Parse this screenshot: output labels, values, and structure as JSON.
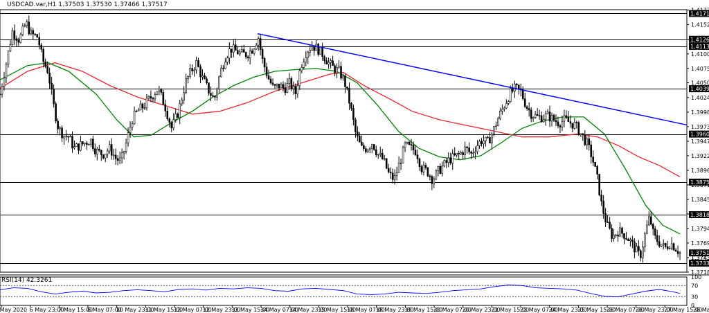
{
  "chart_data": {
    "type": "candlestick",
    "title": "USDCAD.var,H1  1.37503 1.37530 1.37466 1.37517",
    "symbol": "USDCAD.var,H1",
    "ohlc": {
      "open": 1.37503,
      "high": 1.3753,
      "low": 1.37466,
      "close": 1.37517
    },
    "ylim": [
      1.3718,
      1.4178
    ],
    "y_ticks": [
      "1.41775",
      "1.41520",
      "1.41261",
      "1.41005",
      "1.40750",
      "1.40500",
      "1.40240",
      "1.39985",
      "1.39730",
      "1.39475",
      "1.39220",
      "1.38965",
      "1.38710",
      "1.38455",
      "1.38200",
      "1.37945",
      "1.37690",
      "1.37435",
      "1.37180"
    ],
    "x_tick_labels": [
      "5 May 2020",
      "6 May 23:00",
      "7 May 15:00",
      "8 May 07:00",
      "10 May 23:00",
      "11 May 15:00",
      "12 May 07:00",
      "12 May 23:00",
      "13 May 15:00",
      "14 May 07:00",
      "14 May 23:00",
      "15 May 15:00",
      "18 May 07:00",
      "18 May 23:00",
      "19 May 15:00",
      "20 May 07:00",
      "20 May 23:00",
      "21 May 15:00",
      "22 May 07:00",
      "24 May 23:00",
      "25 May 15:00",
      "26 May 07:00",
      "26 May 23:00",
      "27 May 15:00",
      "28 May 07:00"
    ],
    "horizontal_levels": [
      "1.41714",
      "1.41261",
      "1.41138",
      "1.40395",
      "1.39600",
      "1.38758",
      "1.38188",
      "1.37338"
    ],
    "current_price_tag": "1.37517",
    "extra_price_tag": "1.37435",
    "trendline": {
      "x": [
        0.375,
        1.0
      ],
      "y": [
        1.4136,
        1.3976
      ],
      "color": "#0000ff"
    },
    "close_path": [
      [
        0.0,
        1.403
      ],
      [
        0.01,
        1.409
      ],
      [
        0.018,
        1.414
      ],
      [
        0.028,
        1.4125
      ],
      [
        0.038,
        1.4155
      ],
      [
        0.045,
        1.4135
      ],
      [
        0.055,
        1.413
      ],
      [
        0.062,
        1.409
      ],
      [
        0.07,
        1.407
      ],
      [
        0.078,
        1.401
      ],
      [
        0.085,
        1.397
      ],
      [
        0.093,
        1.3958
      ],
      [
        0.1,
        1.3955
      ],
      [
        0.108,
        1.3935
      ],
      [
        0.116,
        1.394
      ],
      [
        0.124,
        1.3945
      ],
      [
        0.132,
        1.395
      ],
      [
        0.14,
        1.393
      ],
      [
        0.15,
        1.3925
      ],
      [
        0.16,
        1.3935
      ],
      [
        0.168,
        1.3918
      ],
      [
        0.176,
        1.3912
      ],
      [
        0.184,
        1.3945
      ],
      [
        0.192,
        1.3985
      ],
      [
        0.2,
        1.4
      ],
      [
        0.21,
        1.401
      ],
      [
        0.22,
        1.4025
      ],
      [
        0.23,
        1.404
      ],
      [
        0.24,
        1.401
      ],
      [
        0.25,
        1.397
      ],
      [
        0.26,
        1.4
      ],
      [
        0.27,
        1.405
      ],
      [
        0.278,
        1.407
      ],
      [
        0.286,
        1.4085
      ],
      [
        0.294,
        1.406
      ],
      [
        0.302,
        1.404
      ],
      [
        0.312,
        1.402
      ],
      [
        0.32,
        1.4065
      ],
      [
        0.328,
        1.4095
      ],
      [
        0.336,
        1.411
      ],
      [
        0.344,
        1.4105
      ],
      [
        0.352,
        1.41
      ],
      [
        0.36,
        1.41
      ],
      [
        0.368,
        1.411
      ],
      [
        0.376,
        1.413
      ],
      [
        0.382,
        1.409
      ],
      [
        0.39,
        1.406
      ],
      [
        0.398,
        1.404
      ],
      [
        0.406,
        1.4045
      ],
      [
        0.414,
        1.404
      ],
      [
        0.422,
        1.405
      ],
      [
        0.43,
        1.403
      ],
      [
        0.438,
        1.408
      ],
      [
        0.446,
        1.4105
      ],
      [
        0.454,
        1.4115
      ],
      [
        0.462,
        1.411
      ],
      [
        0.47,
        1.41
      ],
      [
        0.478,
        1.4085
      ],
      [
        0.486,
        1.4075
      ],
      [
        0.494,
        1.407
      ],
      [
        0.502,
        1.405
      ],
      [
        0.51,
        1.401
      ],
      [
        0.518,
        1.396
      ],
      [
        0.526,
        1.3935
      ],
      [
        0.534,
        1.3935
      ],
      [
        0.542,
        1.3945
      ],
      [
        0.55,
        1.3925
      ],
      [
        0.558,
        1.3915
      ],
      [
        0.566,
        1.389
      ],
      [
        0.574,
        1.388
      ],
      [
        0.582,
        1.391
      ],
      [
        0.59,
        1.394
      ],
      [
        0.598,
        1.3935
      ],
      [
        0.606,
        1.393
      ],
      [
        0.614,
        1.39
      ],
      [
        0.622,
        1.3895
      ],
      [
        0.63,
        1.388
      ],
      [
        0.638,
        1.3895
      ],
      [
        0.646,
        1.3905
      ],
      [
        0.654,
        1.3915
      ],
      [
        0.662,
        1.392
      ],
      [
        0.67,
        1.3925
      ],
      [
        0.678,
        1.3935
      ],
      [
        0.686,
        1.3925
      ],
      [
        0.694,
        1.394
      ],
      [
        0.702,
        1.395
      ],
      [
        0.71,
        1.3945
      ],
      [
        0.718,
        1.3965
      ],
      [
        0.726,
        1.399
      ],
      [
        0.734,
        1.401
      ],
      [
        0.742,
        1.403
      ],
      [
        0.75,
        1.404
      ],
      [
        0.758,
        1.4035
      ],
      [
        0.766,
        1.401
      ],
      [
        0.774,
        1.3995
      ],
      [
        0.782,
        1.399
      ],
      [
        0.79,
        1.399
      ],
      [
        0.798,
        1.3992
      ],
      [
        0.806,
        1.3985
      ],
      [
        0.814,
        1.398
      ],
      [
        0.822,
        1.3985
      ],
      [
        0.83,
        1.398
      ],
      [
        0.838,
        1.3975
      ],
      [
        0.846,
        1.396
      ],
      [
        0.854,
        1.3945
      ],
      [
        0.862,
        1.392
      ],
      [
        0.87,
        1.388
      ],
      [
        0.876,
        1.3835
      ],
      [
        0.884,
        1.38
      ],
      [
        0.892,
        1.378
      ],
      [
        0.9,
        1.379
      ],
      [
        0.908,
        1.3785
      ],
      [
        0.916,
        1.3775
      ],
      [
        0.924,
        1.376
      ],
      [
        0.932,
        1.3745
      ],
      [
        0.94,
        1.379
      ],
      [
        0.946,
        1.3815
      ],
      [
        0.952,
        1.378
      ],
      [
        0.96,
        1.377
      ],
      [
        0.968,
        1.376
      ],
      [
        0.976,
        1.377
      ],
      [
        0.984,
        1.376
      ],
      [
        0.99,
        1.3752
      ]
    ],
    "ma_fast": {
      "color": "#008000",
      "points": [
        [
          0.0,
          1.4055
        ],
        [
          0.04,
          1.408
        ],
        [
          0.07,
          1.4085
        ],
        [
          0.1,
          1.407
        ],
        [
          0.14,
          1.403
        ],
        [
          0.17,
          1.3985
        ],
        [
          0.195,
          1.3955
        ],
        [
          0.22,
          1.3958
        ],
        [
          0.25,
          1.398
        ],
        [
          0.28,
          1.4
        ],
        [
          0.31,
          1.4025
        ],
        [
          0.34,
          1.4045
        ],
        [
          0.37,
          1.406
        ],
        [
          0.4,
          1.407
        ],
        [
          0.43,
          1.4073
        ],
        [
          0.46,
          1.4075
        ],
        [
          0.49,
          1.407
        ],
        [
          0.52,
          1.405
        ],
        [
          0.55,
          1.401
        ],
        [
          0.58,
          1.3965
        ],
        [
          0.61,
          1.3935
        ],
        [
          0.64,
          1.392
        ],
        [
          0.67,
          1.3915
        ],
        [
          0.7,
          1.3922
        ],
        [
          0.73,
          1.3945
        ],
        [
          0.76,
          1.397
        ],
        [
          0.79,
          1.3983
        ],
        [
          0.82,
          1.399
        ],
        [
          0.85,
          1.399
        ],
        [
          0.88,
          1.396
        ],
        [
          0.91,
          1.39
        ],
        [
          0.94,
          1.3835
        ],
        [
          0.965,
          1.38
        ],
        [
          0.99,
          1.3785
        ]
      ]
    },
    "ma_slow": {
      "color": "#e8242e",
      "points": [
        [
          0.0,
          1.404
        ],
        [
          0.04,
          1.407
        ],
        [
          0.08,
          1.4085
        ],
        [
          0.12,
          1.407
        ],
        [
          0.16,
          1.4045
        ],
        [
          0.2,
          1.4025
        ],
        [
          0.24,
          1.401
        ],
        [
          0.28,
          1.3995
        ],
        [
          0.32,
          1.4
        ],
        [
          0.36,
          1.4015
        ],
        [
          0.4,
          1.4035
        ],
        [
          0.44,
          1.405
        ],
        [
          0.48,
          1.4065
        ],
        [
          0.5,
          1.4068
        ],
        [
          0.53,
          1.4045
        ],
        [
          0.57,
          1.402
        ],
        [
          0.6,
          1.4
        ],
        [
          0.64,
          1.3985
        ],
        [
          0.68,
          1.3975
        ],
        [
          0.72,
          1.3965
        ],
        [
          0.76,
          1.3955
        ],
        [
          0.8,
          1.3955
        ],
        [
          0.84,
          1.396
        ],
        [
          0.87,
          1.3955
        ],
        [
          0.9,
          1.394
        ],
        [
          0.93,
          1.392
        ],
        [
          0.96,
          1.3905
        ],
        [
          0.99,
          1.3885
        ]
      ]
    },
    "rsi": {
      "label": "RSI(14) 42.3261",
      "ylim": [
        0,
        100
      ],
      "y_ticks": [
        "100",
        "70",
        "30",
        "0"
      ],
      "levels": [
        70,
        30
      ],
      "color": "#0000ff",
      "points": [
        [
          0.0,
          55
        ],
        [
          0.02,
          62
        ],
        [
          0.04,
          60
        ],
        [
          0.06,
          48
        ],
        [
          0.08,
          40
        ],
        [
          0.1,
          46
        ],
        [
          0.12,
          50
        ],
        [
          0.14,
          44
        ],
        [
          0.16,
          46
        ],
        [
          0.18,
          52
        ],
        [
          0.2,
          55
        ],
        [
          0.22,
          52
        ],
        [
          0.24,
          48
        ],
        [
          0.26,
          56
        ],
        [
          0.28,
          58
        ],
        [
          0.3,
          54
        ],
        [
          0.32,
          60
        ],
        [
          0.34,
          58
        ],
        [
          0.36,
          62
        ],
        [
          0.38,
          60
        ],
        [
          0.4,
          52
        ],
        [
          0.42,
          50
        ],
        [
          0.44,
          58
        ],
        [
          0.46,
          60
        ],
        [
          0.48,
          56
        ],
        [
          0.5,
          52
        ],
        [
          0.52,
          40
        ],
        [
          0.54,
          38
        ],
        [
          0.56,
          40
        ],
        [
          0.58,
          46
        ],
        [
          0.6,
          44
        ],
        [
          0.62,
          42
        ],
        [
          0.64,
          46
        ],
        [
          0.66,
          52
        ],
        [
          0.68,
          55
        ],
        [
          0.7,
          58
        ],
        [
          0.72,
          66
        ],
        [
          0.74,
          72
        ],
        [
          0.76,
          70
        ],
        [
          0.78,
          62
        ],
        [
          0.8,
          60
        ],
        [
          0.82,
          58
        ],
        [
          0.84,
          54
        ],
        [
          0.86,
          42
        ],
        [
          0.88,
          32
        ],
        [
          0.9,
          30
        ],
        [
          0.92,
          40
        ],
        [
          0.94,
          50
        ],
        [
          0.96,
          56
        ],
        [
          0.98,
          48
        ],
        [
          0.99,
          42
        ]
      ]
    }
  }
}
